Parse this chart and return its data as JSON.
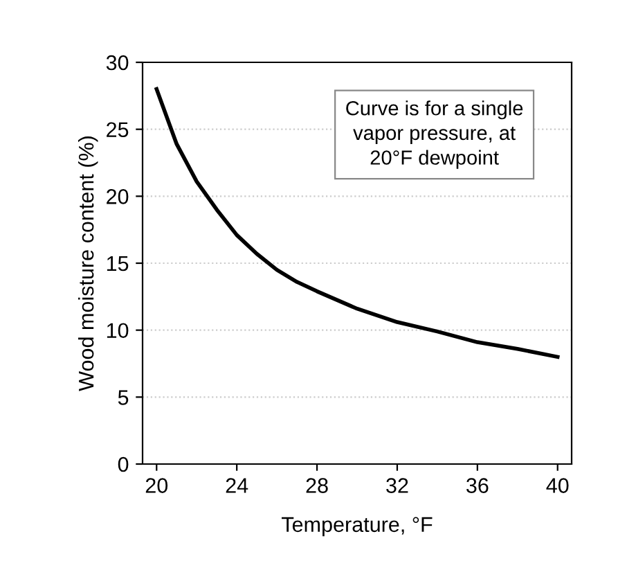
{
  "chart_data": {
    "type": "line",
    "xlabel": "Temperature, °F",
    "ylabel": "Wood moisture content (%)",
    "x": [
      20,
      21,
      22,
      23,
      24,
      25,
      26,
      27,
      28,
      30,
      32,
      34,
      36,
      38,
      40
    ],
    "series": [
      {
        "color": "#000000",
        "values": [
          28,
          23.9,
          21.1,
          19.0,
          17.1,
          15.7,
          14.5,
          13.6,
          12.9,
          11.6,
          10.6,
          9.9,
          9.1,
          8.6,
          8.0
        ]
      }
    ],
    "xlim": [
      19.3,
      40.7
    ],
    "xticks": [
      20,
      24,
      28,
      32,
      36,
      40
    ],
    "ylim": [
      0,
      30
    ],
    "yticks": [
      0,
      5,
      10,
      15,
      20,
      25,
      30
    ],
    "grid": "y",
    "marker": "none",
    "line_style": "solid",
    "annotations": [
      "Curve is for a single\nvapor pressure, at\n20°F dewpoint"
    ]
  }
}
